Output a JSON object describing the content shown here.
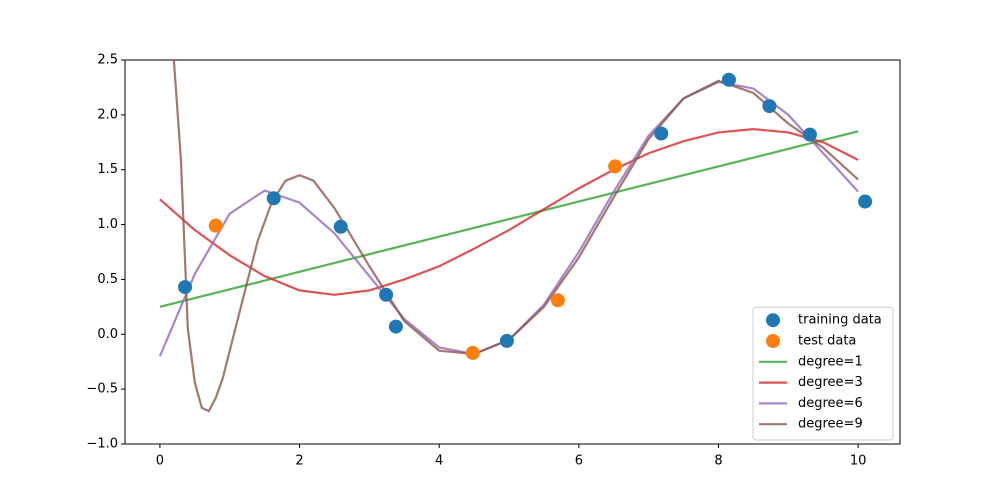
{
  "chart_data": {
    "type": "line",
    "xlim": [
      -0.5,
      10.6
    ],
    "ylim": [
      -1.0,
      2.5
    ],
    "xticks": [
      0,
      2,
      4,
      6,
      8,
      10
    ],
    "yticks": [
      {
        "value": -1.0,
        "label": "−1.0"
      },
      {
        "value": -0.5,
        "label": "−0.5"
      },
      {
        "value": 0.0,
        "label": "0.0"
      },
      {
        "value": 0.5,
        "label": "0.5"
      },
      {
        "value": 1.0,
        "label": "1.0"
      },
      {
        "value": 1.5,
        "label": "1.5"
      },
      {
        "value": 2.0,
        "label": "2.0"
      },
      {
        "value": 2.5,
        "label": "2.5"
      }
    ],
    "legend": "lower right",
    "series": [
      {
        "name": "training data",
        "color": "#1f77b4",
        "marker": true,
        "x": [
          0.36,
          1.63,
          2.59,
          3.24,
          3.38,
          4.97,
          7.18,
          8.15,
          8.73,
          9.31,
          10.1
        ],
        "values": [
          0.43,
          1.24,
          0.98,
          0.36,
          0.07,
          -0.06,
          1.83,
          2.32,
          2.08,
          1.82,
          1.21
        ]
      },
      {
        "name": "test data",
        "color": "#ff7f0e",
        "marker": true,
        "x": [
          0.8,
          4.48,
          5.7,
          6.52
        ],
        "values": [
          0.99,
          -0.17,
          0.31,
          1.53
        ]
      },
      {
        "name": "degree=1",
        "color": "#2ca02c",
        "marker": false,
        "x": [
          0,
          10
        ],
        "values": [
          0.25,
          1.85
        ]
      },
      {
        "name": "degree=3",
        "color": "#d62728",
        "marker": false,
        "x": [
          0,
          0.5,
          1,
          1.5,
          2,
          2.5,
          3,
          3.5,
          4,
          4.5,
          5,
          5.5,
          6,
          6.5,
          7,
          7.5,
          8,
          8.5,
          9,
          9.5,
          10
        ],
        "values": [
          1.23,
          0.95,
          0.72,
          0.53,
          0.4,
          0.36,
          0.4,
          0.5,
          0.62,
          0.78,
          0.95,
          1.14,
          1.33,
          1.5,
          1.65,
          1.76,
          1.84,
          1.87,
          1.84,
          1.75,
          1.59
        ]
      },
      {
        "name": "degree=6",
        "color": "#9467bd",
        "marker": false,
        "x": [
          0,
          0.5,
          1,
          1.5,
          2,
          2.5,
          3,
          3.5,
          4,
          4.5,
          5,
          5.5,
          6,
          6.5,
          7,
          7.5,
          8,
          8.5,
          9,
          9.5,
          10
        ],
        "values": [
          -0.2,
          0.55,
          1.1,
          1.31,
          1.2,
          0.92,
          0.53,
          0.14,
          -0.12,
          -0.18,
          -0.05,
          0.27,
          0.75,
          1.3,
          1.81,
          2.15,
          2.3,
          2.24,
          2.0,
          1.65,
          1.3
        ]
      },
      {
        "name": "degree=9",
        "color": "#8c564b",
        "marker": false,
        "x": [
          0.2,
          0.3,
          0.4,
          0.5,
          0.6,
          0.7,
          0.8,
          0.9,
          1.0,
          1.2,
          1.4,
          1.6,
          1.8,
          2.0,
          2.2,
          2.5,
          3,
          3.5,
          4,
          4.5,
          5,
          5.5,
          6,
          6.5,
          7,
          7.5,
          8,
          8.5,
          9,
          9.5,
          10
        ],
        "values": [
          2.5,
          1.6,
          0.05,
          -0.44,
          -0.67,
          -0.7,
          -0.58,
          -0.4,
          -0.15,
          0.35,
          0.85,
          1.2,
          1.4,
          1.45,
          1.4,
          1.15,
          0.62,
          0.12,
          -0.15,
          -0.18,
          -0.05,
          0.25,
          0.7,
          1.25,
          1.78,
          2.15,
          2.31,
          2.2,
          1.92,
          1.7,
          1.41
        ]
      }
    ]
  }
}
